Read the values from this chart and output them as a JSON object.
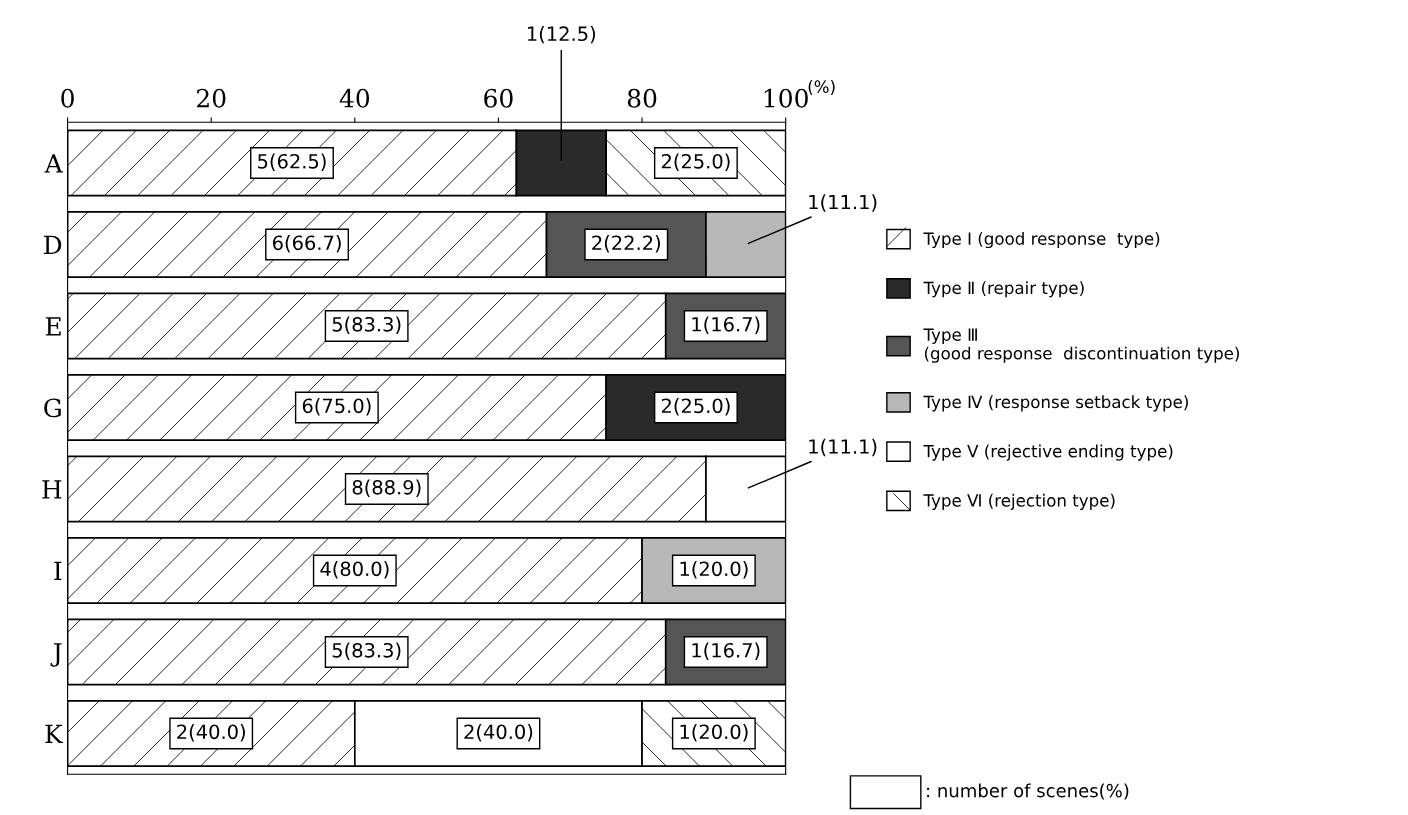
{
  "chart_data": {
    "type": "bar",
    "orientation": "horizontal",
    "stacked": true,
    "xlabel": "(%)",
    "categories": [
      "A",
      "D",
      "E",
      "G",
      "H",
      "I",
      "J",
      "K"
    ],
    "series": [
      {
        "name": "Type Ⅰ (good response  type)",
        "color": "#ffffff",
        "values": [
          62.5,
          66.7,
          83.3,
          75.0,
          88.9,
          80.0,
          83.3,
          40.0
        ],
        "value_labels": [
          "5(62.5)",
          "6(66.7)",
          "5(83.3)",
          "6(75.0)",
          "8(88.9)",
          "4(80.0)",
          "5(83.3)",
          "2(40.0)"
        ]
      },
      {
        "name": "Type Ⅱ (repair type)",
        "color": "#2a2a2a",
        "values": [
          12.5,
          null,
          null,
          25.0,
          null,
          null,
          null,
          null
        ],
        "value_labels": [
          "1(12.5)",
          null,
          null,
          "2(25.0)",
          null,
          null,
          null,
          null
        ]
      },
      {
        "name": "Type Ⅲ\n(good response  discontinuation type)",
        "color": "#555555",
        "values": [
          null,
          22.2,
          16.7,
          null,
          null,
          null,
          16.7,
          null
        ],
        "value_labels": [
          null,
          "2(22.2)",
          "1(16.7)",
          null,
          null,
          null,
          "1(16.7)",
          null
        ]
      },
      {
        "name": "Type Ⅳ (response setback type)",
        "color": "#b8b8b8",
        "values": [
          null,
          11.1,
          null,
          null,
          null,
          20.0,
          null,
          null
        ],
        "value_labels": [
          null,
          "1(11.1)",
          null,
          null,
          null,
          "1(20.0)",
          null,
          null
        ]
      },
      {
        "name": "Type Ⅴ (rejective ending type)",
        "color": "#ffffff",
        "values": [
          null,
          null,
          null,
          null,
          11.1,
          null,
          null,
          40.0
        ],
        "value_labels": [
          null,
          null,
          null,
          null,
          "1(11.1)",
          null,
          null,
          "2(40.0)"
        ]
      },
      {
        "name": "Type Ⅵ (rejection type)",
        "color": "#ffffff",
        "values": [
          25.0,
          null,
          null,
          null,
          null,
          null,
          null,
          20.0
        ],
        "value_labels": [
          "2(25.0)",
          null,
          null,
          null,
          null,
          null,
          null,
          "1(20.0)"
        ]
      }
    ],
    "xlim": [
      0,
      100
    ],
    "xticks": [
      0,
      20,
      40,
      60,
      80,
      100
    ],
    "grid": false,
    "legend": "right",
    "annotations": [
      ": number of scenes(%)"
    ]
  }
}
